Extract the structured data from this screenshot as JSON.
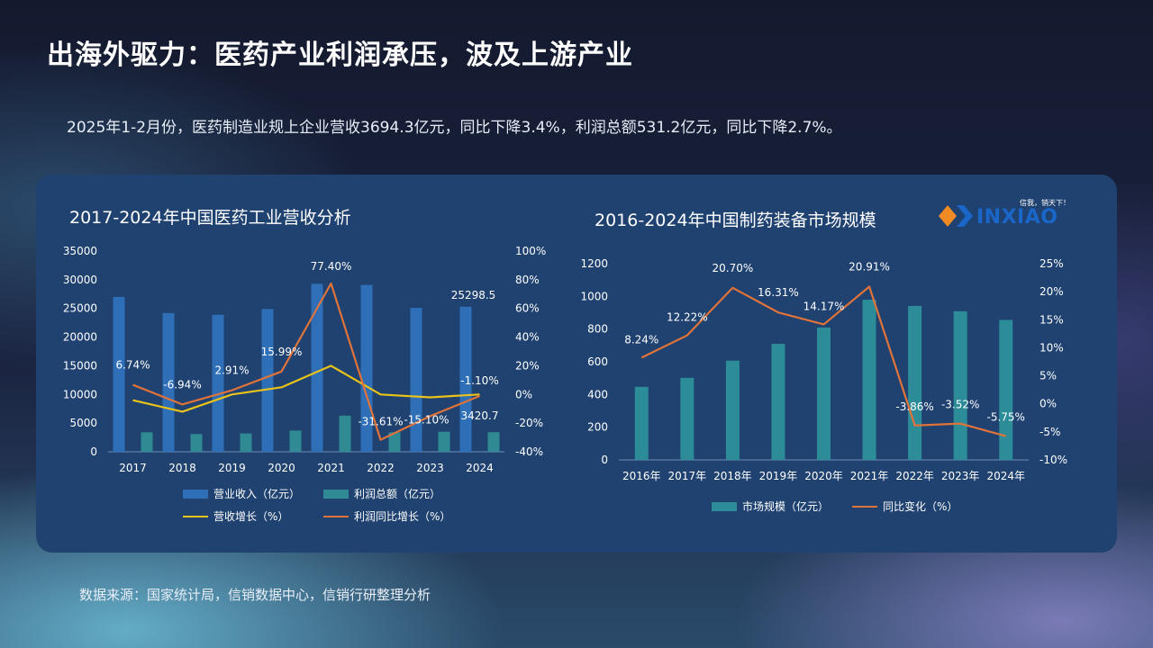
{
  "page": {
    "title": "出海外驱力：医药产业利润承压，波及上游产业",
    "subtitle": "2025年1-2月份，医药制造业规上企业营收3694.3亿元，同比下降3.4%，利润总额531.2亿元，同比下降2.7%。",
    "source": "数据来源：国家统计局，信销数据中心，信销行研整理分析",
    "logo": {
      "text": "INXIAO",
      "slogan": "信我，销天下！",
      "icon": "xinxiao-logo-icon"
    }
  },
  "chart_data": [
    {
      "type": "bar",
      "title": "2017-2024年中国医药工业营收分析",
      "categories": [
        "2017",
        "2018",
        "2019",
        "2020",
        "2021",
        "2022",
        "2023",
        "2024"
      ],
      "y_left": {
        "ticks": [
          "35000",
          "30000",
          "25000",
          "20000",
          "15000",
          "10000",
          "5000",
          "0"
        ],
        "lim": [
          0,
          35000
        ]
      },
      "y_right": {
        "ticks": [
          "100%",
          "80%",
          "60%",
          "40%",
          "20%",
          "0%",
          "-20%",
          "-40%"
        ],
        "lim": [
          -40,
          100
        ]
      },
      "series": [
        {
          "name": "营业收入（亿元）",
          "kind": "bar",
          "axis": "left",
          "color": "#2e6fb8",
          "values": [
            27000,
            24200,
            23900,
            24900,
            29300,
            29100,
            25100,
            25298.5
          ]
        },
        {
          "name": "利润总额（亿元）",
          "kind": "bar",
          "axis": "left",
          "color": "#2f8a93",
          "values": [
            3400,
            3100,
            3200,
            3700,
            6300,
            3400,
            3500,
            3420.7
          ]
        },
        {
          "name": "营收增长（%）",
          "kind": "line",
          "axis": "right",
          "color": "#e9c21a",
          "values": [
            -4,
            -12,
            0,
            5,
            20,
            0,
            -2,
            0
          ]
        },
        {
          "name": "利润同比增长（%）",
          "kind": "line",
          "axis": "right",
          "color": "#e0733a",
          "values": [
            6.74,
            -6.94,
            2.91,
            15.99,
            77.4,
            -31.61,
            -15.1,
            -1.1
          ]
        }
      ],
      "annotations": {
        "profit_growth_labels": [
          "6.74%",
          "-6.94%",
          "2.91%",
          "15.99%",
          "77.40%",
          "-31.61%",
          "-15.10%",
          "-1.10%"
        ],
        "revenue_label_2024": "25298.5",
        "profit_label_2024": "3420.7"
      },
      "legend": [
        "营业收入（亿元）",
        "利润总额（亿元）",
        "营收增长（%）",
        "利润同比增长（%）"
      ],
      "legend_position": "bottom"
    },
    {
      "type": "bar",
      "title": "2016-2024年中国制药装备市场规模",
      "categories": [
        "2016年",
        "2017年",
        "2018年",
        "2019年",
        "2020年",
        "2021年",
        "2022年",
        "2023年",
        "2024年"
      ],
      "y_left": {
        "ticks": [
          "1200",
          "1000",
          "800",
          "600",
          "400",
          "200",
          "0"
        ],
        "lim": [
          0,
          1200
        ]
      },
      "y_right": {
        "ticks": [
          "25%",
          "20%",
          "15%",
          "10%",
          "5%",
          "0%",
          "-5%",
          "-10%"
        ],
        "lim": [
          -10,
          25
        ]
      },
      "series": [
        {
          "name": "市场规模（亿元）",
          "kind": "bar",
          "axis": "left",
          "color": "#2c8c98",
          "values": [
            447,
            502,
            607,
            710,
            810,
            980,
            942,
            909,
            856
          ]
        },
        {
          "name": "同比变化（%）",
          "kind": "line",
          "axis": "right",
          "color": "#e0733a",
          "values": [
            8.24,
            12.22,
            20.7,
            16.31,
            14.17,
            20.91,
            -3.86,
            -3.52,
            -5.75
          ]
        }
      ],
      "annotations": {
        "growth_labels": [
          "8.24%",
          "12.22%",
          "20.70%",
          "16.31%",
          "14.17%",
          "20.91%",
          "-3.86%",
          "-3.52%",
          "-5.75%"
        ]
      },
      "legend": [
        "市场规模（亿元）",
        "同比变化（%）"
      ],
      "legend_position": "bottom"
    }
  ]
}
